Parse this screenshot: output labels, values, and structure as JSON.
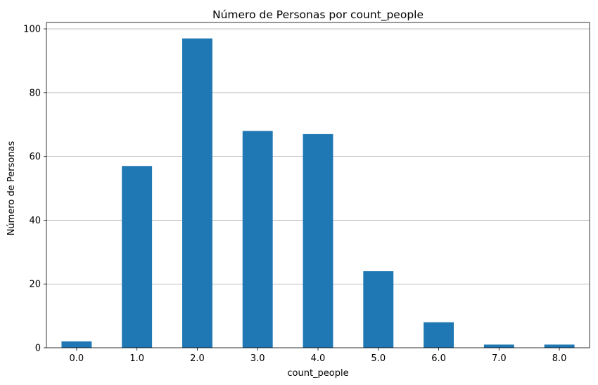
{
  "chart_data": {
    "type": "bar",
    "title": "Número de Personas por count_people",
    "xlabel": "count_people",
    "ylabel": "Número de Personas",
    "categories": [
      "0.0",
      "1.0",
      "2.0",
      "3.0",
      "4.0",
      "5.0",
      "6.0",
      "7.0",
      "8.0"
    ],
    "values": [
      2,
      57,
      97,
      68,
      67,
      24,
      8,
      1,
      1
    ],
    "ylim": [
      0,
      102
    ],
    "yticks": [
      "0",
      "20",
      "40",
      "60",
      "80",
      "100"
    ],
    "grid": "horizontal",
    "legend": "none",
    "colors": {
      "bar": "#1f77b4",
      "grid": "#b0b0b0",
      "axis": "#000000"
    }
  }
}
